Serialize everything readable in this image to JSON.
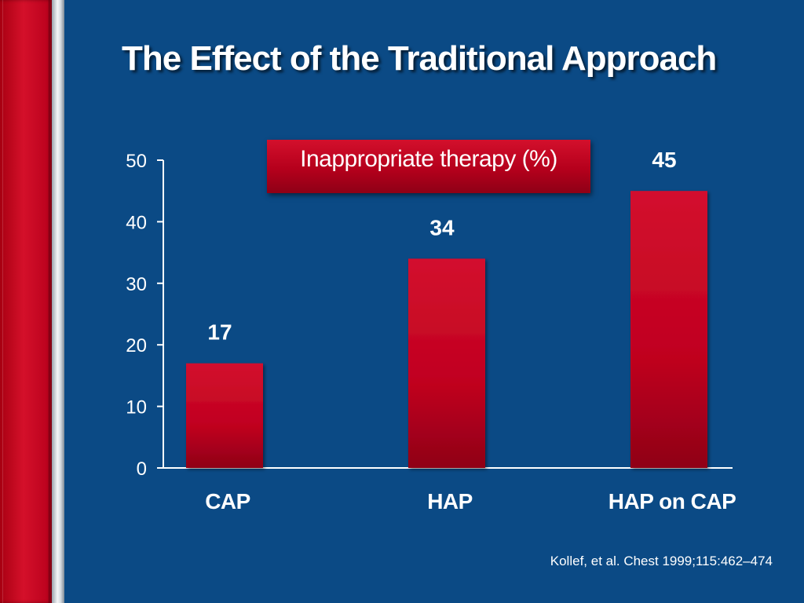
{
  "slide": {
    "title": "The Effect of the Traditional Approach",
    "source": "Kollef, et al. Chest 1999;115:462–474"
  },
  "colors": {
    "background": "#0b4a85",
    "bar": "#c8102e",
    "accent_band": "#c8102e"
  },
  "chart_data": {
    "type": "bar",
    "title": "",
    "series": [
      {
        "name": "Inappropriate therapy (%)",
        "values": [
          17,
          34,
          45
        ]
      }
    ],
    "categories": [
      "CAP",
      "HAP",
      "HAP on CAP"
    ],
    "data_labels": [
      "17",
      "34",
      "45"
    ],
    "y_ticks": [
      "0",
      "10",
      "20",
      "30",
      "40",
      "50"
    ],
    "ylim": [
      0,
      50
    ],
    "xlabel": "",
    "ylabel": "",
    "grid": false,
    "legend_position": "top-center"
  }
}
